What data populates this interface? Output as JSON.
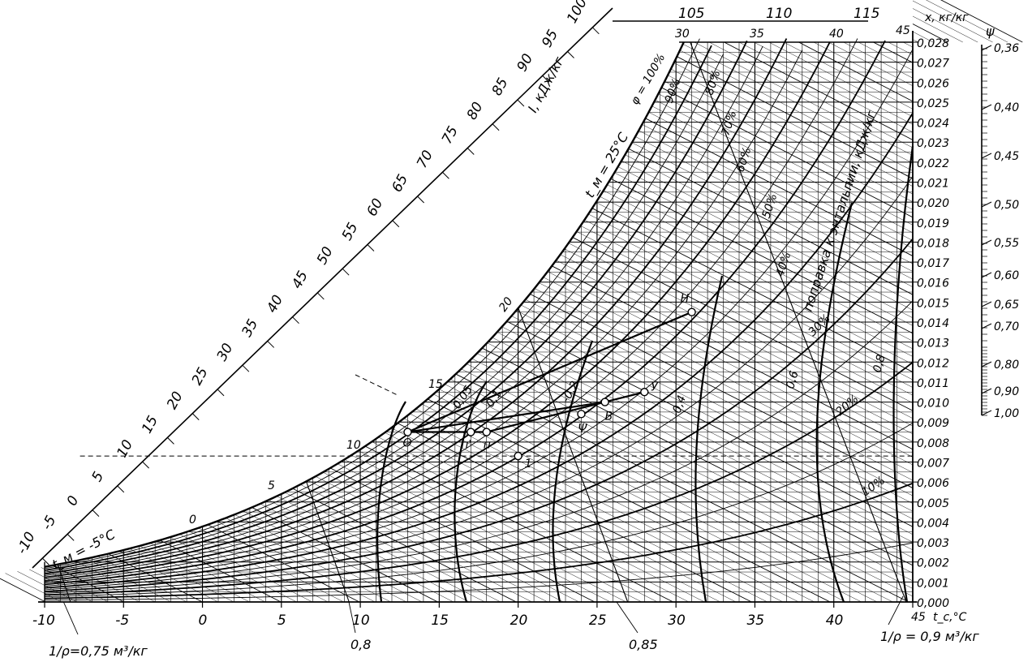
{
  "chart_data": {
    "type": "psychrometric-chart",
    "x_axis": {
      "label": "t_c,°C",
      "ticks": [
        "-10",
        "-5",
        "0",
        "5",
        "10",
        "15",
        "20",
        "25",
        "30",
        "35",
        "40",
        "45"
      ],
      "range": [
        -10,
        45
      ]
    },
    "y_axis": {
      "label": "x, кг/кг",
      "ticks": [
        "0,000",
        "0,001",
        "0,002",
        "0,003",
        "0,004",
        "0,005",
        "0,006",
        "0,007",
        "0,008",
        "0,009",
        "0,010",
        "0,011",
        "0,012",
        "0,013",
        "0,014",
        "0,015",
        "0,016",
        "0,017",
        "0,018",
        "0,019",
        "0,020",
        "0,021",
        "0,022",
        "0,023",
        "0,024",
        "0,025",
        "0,026",
        "0,027",
        "0,028"
      ],
      "range": [
        0,
        0.028
      ]
    },
    "enthalpy_scale": {
      "label": "I, кДж/кг",
      "ticks": [
        "-10",
        "-5",
        "0",
        "5",
        "10",
        "15",
        "20",
        "25",
        "30",
        "35",
        "40",
        "45",
        "50",
        "55",
        "60",
        "65",
        "70",
        "75",
        "80",
        "85",
        "90",
        "95",
        "100"
      ]
    },
    "top_enthalpy_ticks": [
      "105",
      "110",
      "115"
    ],
    "wet_bulb_labels": {
      "top": [
        "30",
        "35",
        "40",
        "45"
      ],
      "inner": [
        "0",
        "5",
        "10",
        "15",
        "20"
      ],
      "tm_low": "t_м = -5°C",
      "tm_high": "t_м = 25°C"
    },
    "relative_humidity_labels": [
      "φ = 100%",
      "90%",
      "80%",
      "70%",
      "60%",
      "50%",
      "40%",
      "30%",
      "20%",
      "10%"
    ],
    "relative_humidity_values": [
      100,
      90,
      80,
      70,
      60,
      50,
      40,
      30,
      20,
      10
    ],
    "density_labels": {
      "left": "1/ρ=0,75 м³/кг",
      "right": "1/ρ = 0,9 м³/кг",
      "mid": [
        "0,8",
        "0,85"
      ]
    },
    "psi_scale": {
      "label": "ψ",
      "ticks": [
        "0,36",
        "0,40",
        "0,45",
        "0,50",
        "0,55",
        "0,60",
        "0,65",
        "0,70",
        "0,80",
        "0,90",
        "1,00"
      ]
    },
    "correction_label": "поправка к энтальпии, кДж/кг",
    "correction_values": [
      "0,05",
      "0,1",
      "-0,2",
      "-0,4",
      "0,6",
      "0,8"
    ],
    "process_points": [
      {
        "label": "O",
        "t": 13.0,
        "x": 0.0085
      },
      {
        "label": "п'",
        "t": 17.0,
        "x": 0.0085
      },
      {
        "label": "п",
        "t": 18.0,
        "x": 0.0085
      },
      {
        "label": "1",
        "t": 20.0,
        "x": 0.0073
      },
      {
        "label": "Ψ",
        "t": 24.0,
        "x": 0.0094
      },
      {
        "label": "B",
        "t": 25.5,
        "x": 0.01
      },
      {
        "label": "У",
        "t": 28.0,
        "x": 0.0105
      },
      {
        "label": "H",
        "t": 31.0,
        "x": 0.0145
      }
    ]
  }
}
